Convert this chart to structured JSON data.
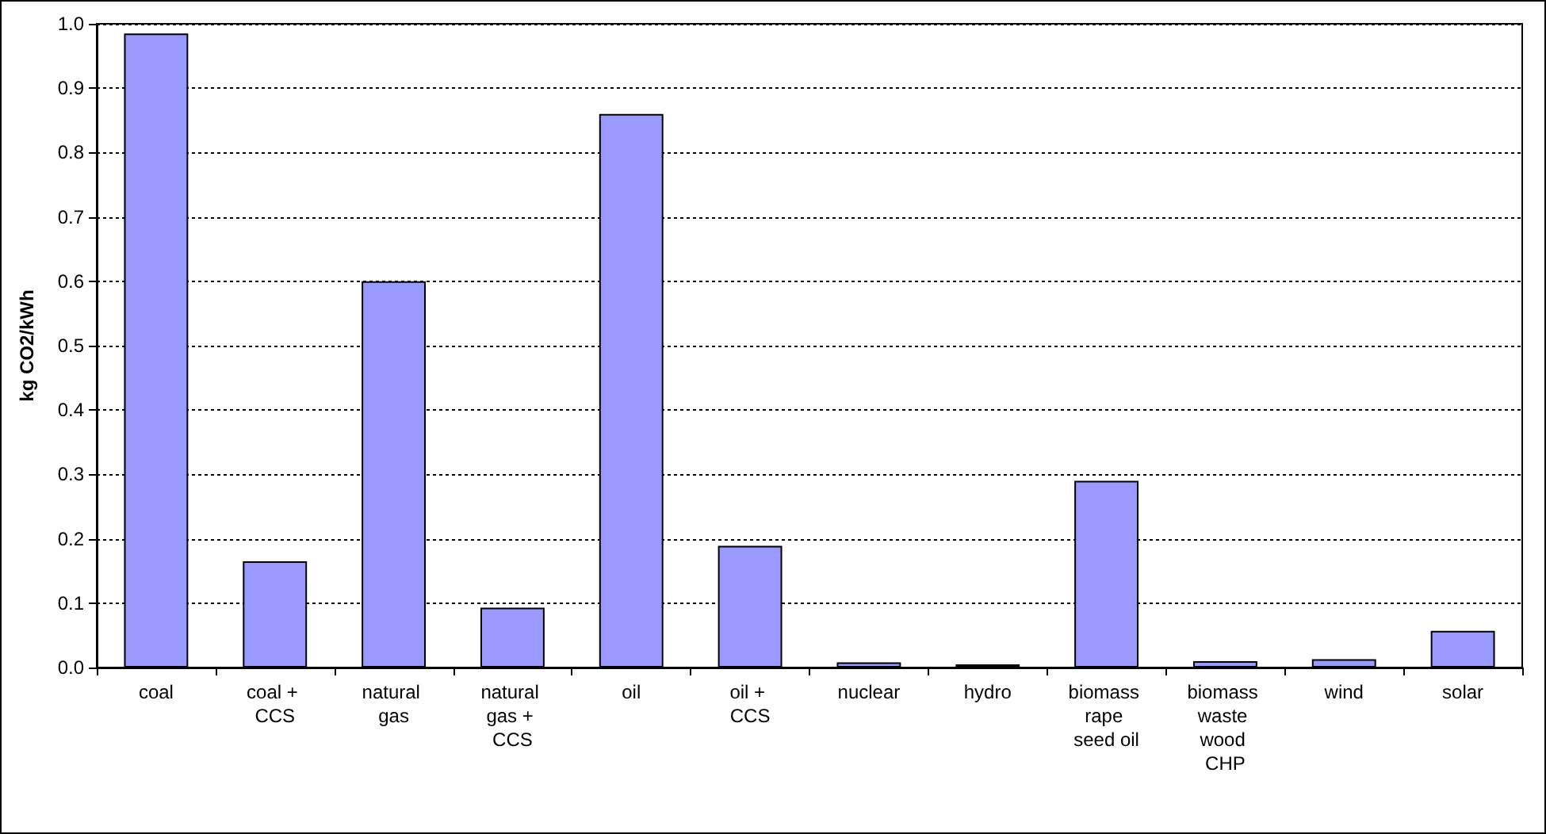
{
  "chart_data": {
    "type": "bar",
    "ylabel": "kg CO2/kWh",
    "categories": [
      "coal",
      "coal + CCS",
      "natural gas",
      "natural gas + CCS",
      "oil",
      "oil + CCS",
      "nuclear",
      "hydro",
      "biomass rape seed oil",
      "biomass waste wood CHP",
      "wind",
      "solar"
    ],
    "values": [
      0.985,
      0.165,
      0.6,
      0.093,
      0.86,
      0.189,
      0.008,
      0.005,
      0.29,
      0.01,
      0.013,
      0.057
    ],
    "color": "#9999ff",
    "ylim": [
      0,
      1.0
    ],
    "yticks": [
      {
        "value": 0,
        "label": "0.0"
      },
      0.1,
      0.2,
      0.3,
      0.4,
      0.5,
      0.6,
      0.7,
      0.8,
      0.9,
      {
        "value": 1,
        "label": "1.0"
      }
    ],
    "grid": "y"
  }
}
